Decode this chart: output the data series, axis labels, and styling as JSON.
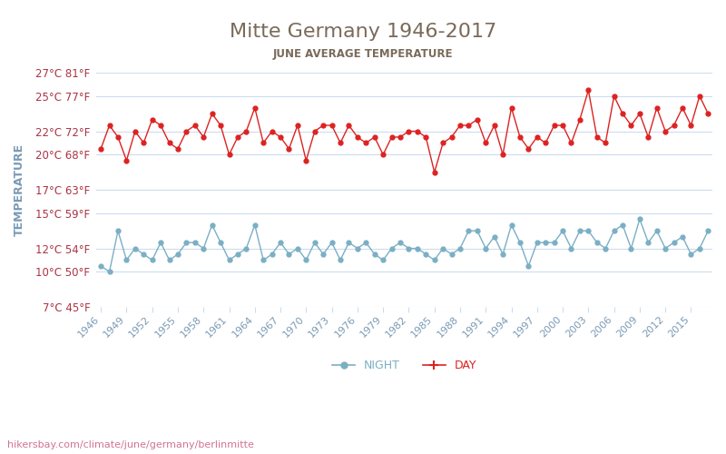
{
  "title": "Mitte Germany 1946-2017",
  "subtitle": "JUNE AVERAGE TEMPERATURE",
  "xlabel": "",
  "ylabel": "TEMPERATURE",
  "watermark": "hikersbay.com/climate/june/germany/berlinmitte",
  "years": [
    1946,
    1947,
    1948,
    1949,
    1950,
    1951,
    1952,
    1953,
    1954,
    1955,
    1956,
    1957,
    1958,
    1959,
    1960,
    1961,
    1962,
    1963,
    1964,
    1965,
    1966,
    1967,
    1968,
    1969,
    1970,
    1971,
    1972,
    1973,
    1974,
    1975,
    1976,
    1977,
    1978,
    1979,
    1980,
    1981,
    1982,
    1983,
    1984,
    1985,
    1986,
    1987,
    1988,
    1989,
    1990,
    1991,
    1992,
    1993,
    1994,
    1995,
    1996,
    1997,
    1998,
    1999,
    2000,
    2001,
    2002,
    2003,
    2004,
    2005,
    2006,
    2007,
    2008,
    2009,
    2010,
    2011,
    2012,
    2013,
    2014,
    2015,
    2016,
    2017
  ],
  "day_temps": [
    20.5,
    22.5,
    21.5,
    19.5,
    22.0,
    21.0,
    23.0,
    22.5,
    21.0,
    20.5,
    22.0,
    22.5,
    21.5,
    23.5,
    22.5,
    20.0,
    21.5,
    22.0,
    24.0,
    21.0,
    22.0,
    21.5,
    20.5,
    22.5,
    19.5,
    22.0,
    22.5,
    22.5,
    21.0,
    22.5,
    21.5,
    21.0,
    21.5,
    20.0,
    21.5,
    21.5,
    22.0,
    22.0,
    21.5,
    18.5,
    21.0,
    21.5,
    22.5,
    22.5,
    23.0,
    21.0,
    22.5,
    20.0,
    24.0,
    21.5,
    20.5,
    21.5,
    21.0,
    22.5,
    22.5,
    21.0,
    23.0,
    25.5,
    21.5,
    21.0,
    25.0,
    23.5,
    22.5,
    23.5,
    21.5,
    24.0,
    22.0,
    22.5,
    24.0,
    22.5,
    25.0,
    23.5
  ],
  "night_temps": [
    10.5,
    10.0,
    13.5,
    11.0,
    12.0,
    11.5,
    11.0,
    12.5,
    11.0,
    11.5,
    12.5,
    12.5,
    12.0,
    14.0,
    12.5,
    11.0,
    11.5,
    12.0,
    14.0,
    11.0,
    11.5,
    12.5,
    11.5,
    12.0,
    11.0,
    12.5,
    11.5,
    12.5,
    11.0,
    12.5,
    12.0,
    12.5,
    11.5,
    11.0,
    12.0,
    12.5,
    12.0,
    12.0,
    11.5,
    11.0,
    12.0,
    11.5,
    12.0,
    13.5,
    13.5,
    12.0,
    13.0,
    11.5,
    14.0,
    12.5,
    10.5,
    12.5,
    12.5,
    12.5,
    13.5,
    12.0,
    13.5,
    13.5,
    12.5,
    12.0,
    13.5,
    14.0,
    12.0,
    14.5,
    12.5,
    13.5,
    12.0,
    12.5,
    13.0,
    11.5,
    12.0,
    13.5
  ],
  "day_color": "#dd2222",
  "night_color": "#7aafc4",
  "bg_color": "#ffffff",
  "grid_color": "#ccddee",
  "title_color": "#7a6a5a",
  "subtitle_color": "#7a6a5a",
  "ylabel_color": "#7a9ab5",
  "tick_color": "#aa3344",
  "xtick_color": "#7a9ab5",
  "ylim_min": 7,
  "ylim_max": 27,
  "yticks_c": [
    7,
    10,
    12,
    15,
    17,
    20,
    22,
    25,
    27
  ],
  "yticks_f": [
    45,
    50,
    54,
    59,
    63,
    68,
    72,
    77,
    81
  ],
  "xtick_years": [
    1946,
    1949,
    1952,
    1955,
    1958,
    1961,
    1964,
    1967,
    1970,
    1973,
    1976,
    1979,
    1982,
    1985,
    1988,
    1991,
    1994,
    1997,
    2000,
    2003,
    2006,
    2009,
    2012,
    2015
  ]
}
